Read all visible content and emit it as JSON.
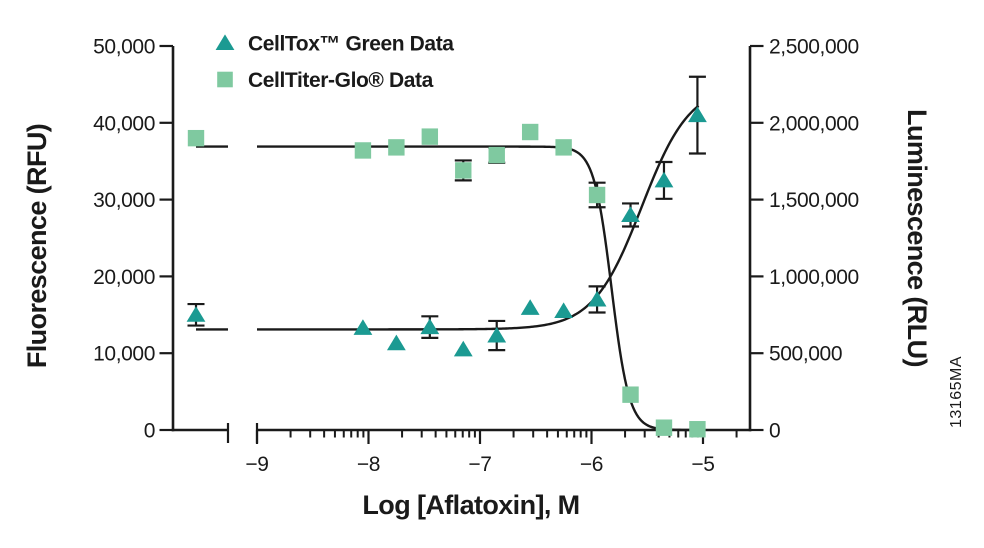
{
  "figure": {
    "background": "#ffffff"
  },
  "colors": {
    "celltox_teal": "#1B9A92",
    "celltiterglo_green": "#7FC9A0",
    "axis_black": "#1A1A1A",
    "watermark_gray": "#B5B5B5"
  },
  "chart_data": {
    "type": "line",
    "subtype": "dose-response scatter with sigmoidal (4PL) fit curves, dual y-axes, log10 x-axis with axis break and untreated-control points left of the break",
    "title": "",
    "xlabel": "Log [Aflatoxin], M",
    "ylabel_left": "Fluorescence (RFU)",
    "ylabel_right": "Luminescence (RLU)",
    "watermark": "13165MA",
    "legend": {
      "position": "top-left inside plot",
      "items": [
        "CellTox™ Green Data",
        "CellTiter-Glo® Data"
      ]
    },
    "x_axis": {
      "scale": "log10 molar concentration",
      "has_break": true,
      "major_ticks": [
        -9,
        -8,
        -7,
        -6,
        -5
      ],
      "tick_labels": [
        "−9",
        "−8",
        "−7",
        "−6",
        "−5"
      ],
      "minor_ticks": "log-decade minors (2×–9×) between majors",
      "axis_end": -4.58
    },
    "y_axis_left": {
      "min": 0,
      "max": 50000,
      "ticks": [
        0,
        10000,
        20000,
        30000,
        40000,
        50000
      ],
      "tick_labels": [
        "0",
        "10,000",
        "20,000",
        "30,000",
        "40,000",
        "50,000"
      ]
    },
    "y_axis_right": {
      "min": 0,
      "max": 2500000,
      "ticks": [
        0,
        500000,
        1000000,
        1500000,
        2000000,
        2500000
      ],
      "tick_labels": [
        "0",
        "500,000",
        "1,000,000",
        "1,500,000",
        "2,000,000",
        "2,500,000"
      ]
    },
    "series": [
      {
        "name": "CellTox™ Green Data",
        "marker": "triangle",
        "color": "#1B9A92",
        "axis": "left",
        "control_point": {
          "label": "untreated control (left of axis break)",
          "y": 15000,
          "err": 1400
        },
        "points": [
          {
            "x": -8.05,
            "y": 13300,
            "err": 0
          },
          {
            "x": -7.75,
            "y": 11300,
            "err": 0
          },
          {
            "x": -7.45,
            "y": 13400,
            "err": 1400
          },
          {
            "x": -7.15,
            "y": 10500,
            "err": 0
          },
          {
            "x": -6.85,
            "y": 12300,
            "err": 1900
          },
          {
            "x": -6.55,
            "y": 15900,
            "err": 0
          },
          {
            "x": -6.25,
            "y": 15500,
            "err": 0
          },
          {
            "x": -5.95,
            "y": 17000,
            "err": 1700
          },
          {
            "x": -5.65,
            "y": 28000,
            "err": 1500
          },
          {
            "x": -5.35,
            "y": 32500,
            "err": 2400
          },
          {
            "x": -5.05,
            "y": 41000,
            "err": 5000
          }
        ],
        "fit": {
          "model": "4PL",
          "direction": "increasing",
          "bottom": 13100,
          "top": 45000,
          "logEC50": -5.55,
          "hillslope": 2.0
        }
      },
      {
        "name": "CellTiter-Glo® Data",
        "marker": "square",
        "color": "#7FC9A0",
        "axis": "right",
        "control_point": {
          "label": "untreated control (left of axis break)",
          "y": 1900000,
          "err": 0
        },
        "points": [
          {
            "x": -8.05,
            "y": 1820000,
            "err": 0
          },
          {
            "x": -7.75,
            "y": 1840000,
            "err": 0
          },
          {
            "x": -7.45,
            "y": 1910000,
            "err": 0
          },
          {
            "x": -7.15,
            "y": 1690000,
            "err": 65000
          },
          {
            "x": -6.85,
            "y": 1790000,
            "err": 50000
          },
          {
            "x": -6.55,
            "y": 1940000,
            "err": 0
          },
          {
            "x": -6.25,
            "y": 1840000,
            "err": 0
          },
          {
            "x": -5.95,
            "y": 1530000,
            "err": 80000
          },
          {
            "x": -5.65,
            "y": 230000,
            "err": 0
          },
          {
            "x": -5.35,
            "y": 15000,
            "err": 0
          },
          {
            "x": -5.05,
            "y": 5000,
            "err": 0
          }
        ],
        "fit": {
          "model": "4PL",
          "direction": "decreasing",
          "bottom": 0,
          "top": 1845000,
          "logEC50": -5.82,
          "hillslope": 5.5
        }
      }
    ]
  }
}
